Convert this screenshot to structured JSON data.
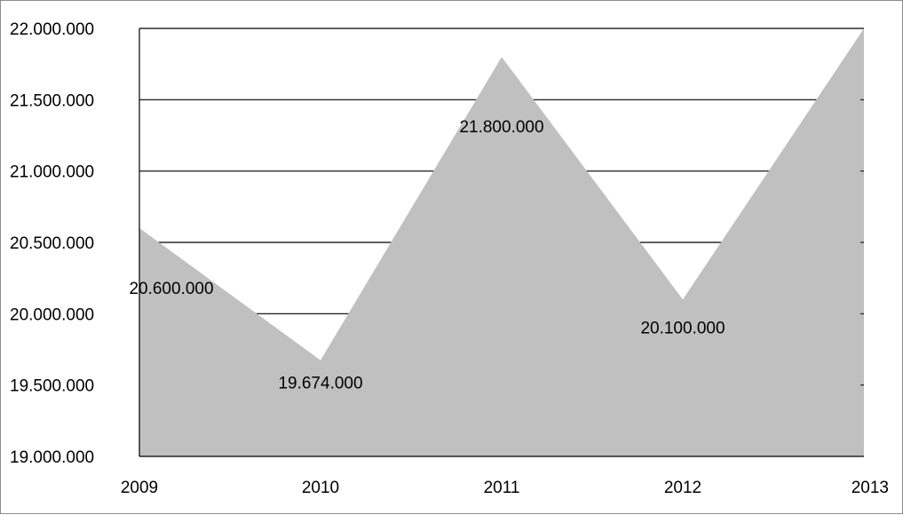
{
  "chart_data": {
    "type": "area",
    "title": "",
    "xlabel": "",
    "ylabel": "",
    "categories": [
      "2009",
      "2010",
      "2011",
      "2012",
      "2013"
    ],
    "series": [
      {
        "values": [
          20600000,
          19674000,
          21800000,
          20100000,
          22000000
        ],
        "data_labels": [
          "20.600.000",
          "19.674.000",
          "21.800.000",
          "20.100.000",
          ""
        ]
      }
    ],
    "ylim": [
      19000000,
      22000000
    ],
    "y_ticks": [
      19000000,
      19500000,
      20000000,
      20500000,
      21000000,
      21500000,
      22000000
    ],
    "y_tick_labels": [
      "19.000.000",
      "19.500.000",
      "20.000.000",
      "20.500.000",
      "21.000.000",
      "21.500.000",
      "22.000.000"
    ],
    "grid": true,
    "legend": "none",
    "colors": {
      "area_fill": "#c0c0c0",
      "gridline": "#000000",
      "axis": "#000000",
      "frame_border": "#8c8c8c"
    }
  }
}
